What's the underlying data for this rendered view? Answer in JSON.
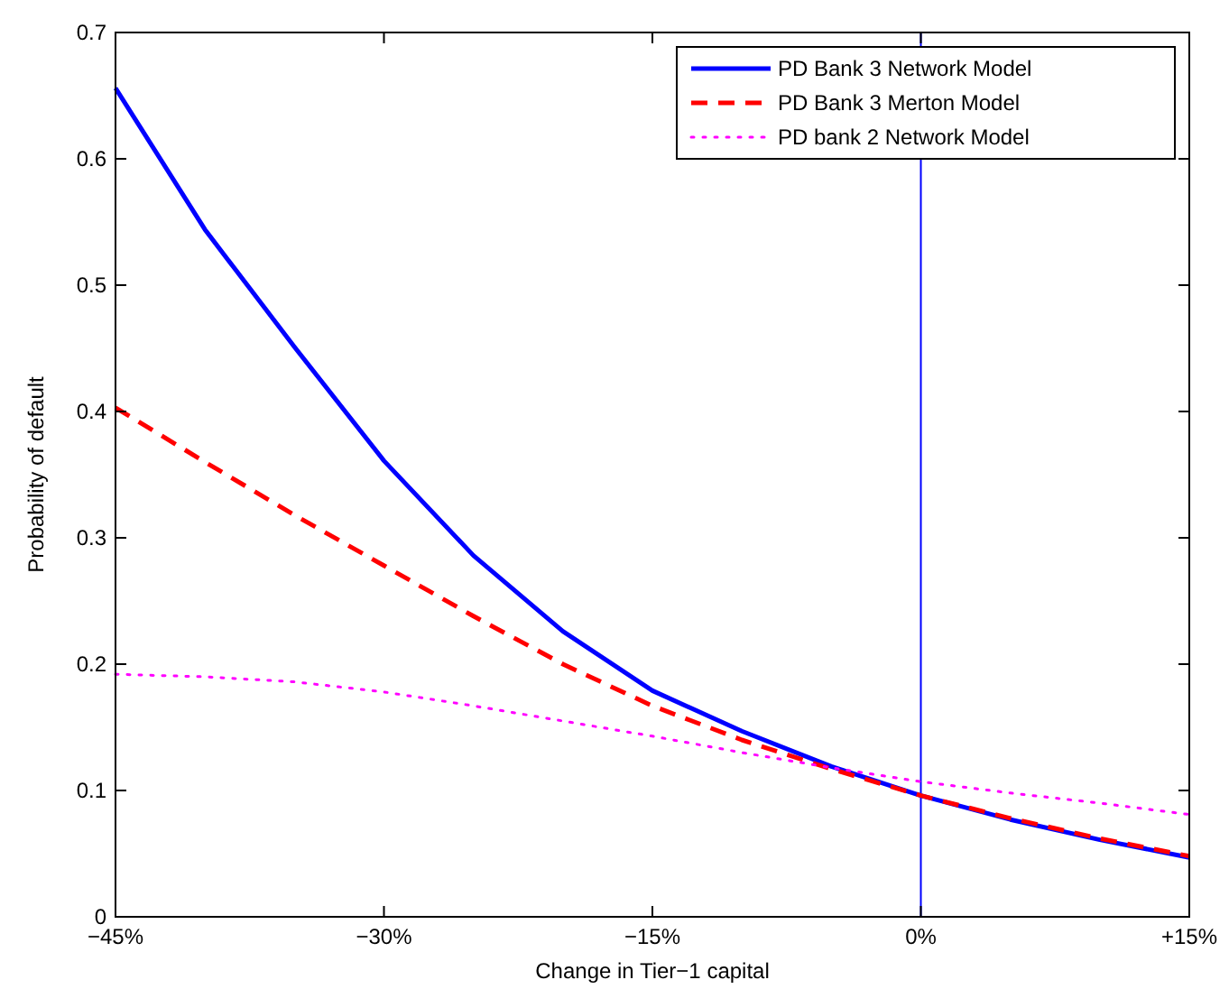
{
  "chart_data": {
    "type": "line",
    "xlabel": "Change in Tier−1 capital",
    "ylabel": "Probability of default",
    "x": [
      -45,
      -40,
      -35,
      -30,
      -25,
      -20,
      -15,
      -10,
      -5,
      0,
      5,
      10,
      15
    ],
    "xlim": [
      -45,
      15
    ],
    "xticks": [
      {
        "value": -45,
        "label": "−45%"
      },
      {
        "value": -30,
        "label": "−30%"
      },
      {
        "value": -15,
        "label": "−15%"
      },
      {
        "value": 0,
        "label": "0%"
      },
      {
        "value": 15,
        "label": "+15%"
      }
    ],
    "ylim": [
      0,
      0.7
    ],
    "yticks": [
      0,
      0.1,
      0.2,
      0.3,
      0.4,
      0.5,
      0.6,
      0.7
    ],
    "grid": false,
    "legend": "top right",
    "marker": "none",
    "series": [
      {
        "name": "PD Bank 3 Network Model",
        "color": "#0000ff",
        "line_style": "solid",
        "values": [
          0.656,
          0.544,
          0.451,
          0.361,
          0.286,
          0.226,
          0.179,
          0.147,
          0.119,
          0.096,
          0.077,
          0.061,
          0.047
        ]
      },
      {
        "name": "PD Bank 3 Merton Model",
        "color": "#ff0000",
        "line_style": "dashed",
        "values": [
          0.403,
          0.36,
          0.318,
          0.278,
          0.238,
          0.2,
          0.167,
          0.14,
          0.117,
          0.096,
          0.078,
          0.062,
          0.048
        ]
      },
      {
        "name": "PD bank 2 Network Model",
        "color": "#ff00ff",
        "line_style": "dotted",
        "values": [
          0.192,
          0.19,
          0.186,
          0.178,
          0.167,
          0.155,
          0.143,
          0.13,
          0.118,
          0.107,
          0.098,
          0.09,
          0.081
        ]
      }
    ],
    "ref_lines": [
      {
        "axis": "x",
        "value": 0,
        "color": "#0000ff",
        "line_style": "solid"
      }
    ]
  }
}
